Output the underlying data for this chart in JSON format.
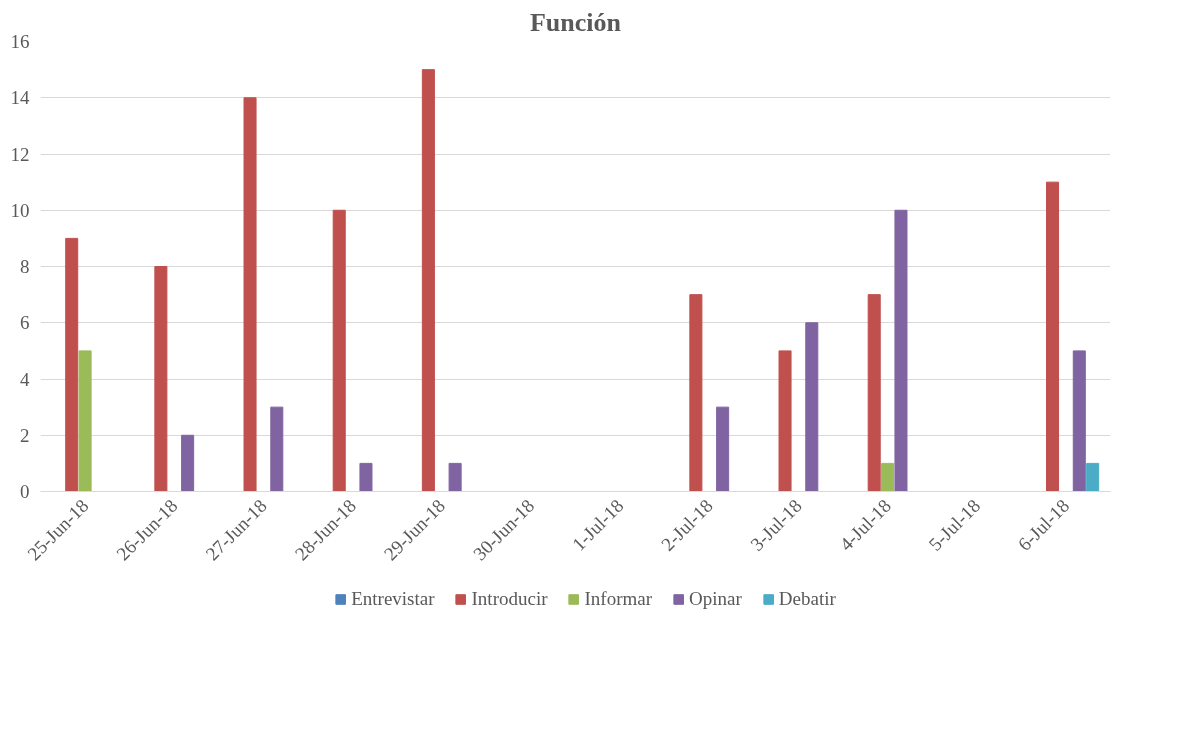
{
  "chart_data": {
    "type": "bar",
    "title": "Función",
    "categories": [
      "25-Jun-18",
      "26-Jun-18",
      "27-Jun-18",
      "28-Jun-18",
      "29-Jun-18",
      "30-Jun-18",
      "1-Jul-18",
      "2-Jul-18",
      "3-Jul-18",
      "4-Jul-18",
      "5-Jul-18",
      "6-Jul-18"
    ],
    "series": [
      {
        "name": "Entrevistar",
        "color": "#4f81bd",
        "values": [
          0,
          0,
          0,
          0,
          0,
          0,
          0,
          0,
          0,
          0,
          0,
          0
        ]
      },
      {
        "name": "Introducir",
        "color": "#c0504d",
        "values": [
          9,
          8,
          14,
          10,
          15,
          0,
          0,
          7,
          5,
          7,
          0,
          11
        ]
      },
      {
        "name": "Informar",
        "color": "#9bbb59",
        "values": [
          5,
          0,
          0,
          0,
          0,
          0,
          0,
          0,
          0,
          1,
          0,
          0
        ]
      },
      {
        "name": "Opinar",
        "color": "#8064a2",
        "values": [
          0,
          2,
          3,
          1,
          1,
          0,
          0,
          3,
          6,
          10,
          0,
          5
        ]
      },
      {
        "name": "Debatir",
        "color": "#4bacc6",
        "values": [
          0,
          0,
          0,
          0,
          0,
          0,
          0,
          0,
          0,
          0,
          0,
          1
        ]
      }
    ],
    "ylim": [
      0,
      16
    ],
    "yticks": [
      0,
      2,
      4,
      6,
      8,
      10,
      12,
      14,
      16
    ],
    "grid": "y",
    "legend": "bottom"
  }
}
